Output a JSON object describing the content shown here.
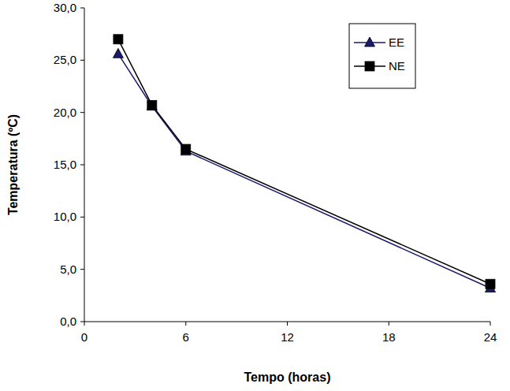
{
  "chart_data": {
    "type": "line",
    "x_label": "Tempo (horas)",
    "y_label": "Temperatura (ºC)",
    "x": [
      2,
      4,
      6,
      24
    ],
    "series": [
      {
        "name": "EE",
        "color": "#1a1a6e",
        "marker": "triangle",
        "line_style": "solid",
        "values": [
          25.6,
          20.6,
          16.3,
          3.2
        ]
      },
      {
        "name": "NE",
        "color": "#000000",
        "marker": "square",
        "line_style": "solid",
        "values": [
          27.0,
          20.7,
          16.5,
          3.6
        ]
      }
    ],
    "xlim": [
      0,
      24
    ],
    "xticks": [
      0,
      6,
      12,
      18,
      24
    ],
    "ylim": [
      0,
      30
    ],
    "yticks": [
      {
        "value": 0,
        "label": "0,0"
      },
      {
        "value": 5,
        "label": "5,0"
      },
      {
        "value": 10,
        "label": "10,0"
      },
      {
        "value": 15,
        "label": "15,0"
      },
      {
        "value": 20,
        "label": "20,0"
      },
      {
        "value": 25,
        "label": "25,0"
      },
      {
        "value": 30,
        "label": "30,0"
      }
    ],
    "grid": false,
    "legend": "top-right"
  }
}
